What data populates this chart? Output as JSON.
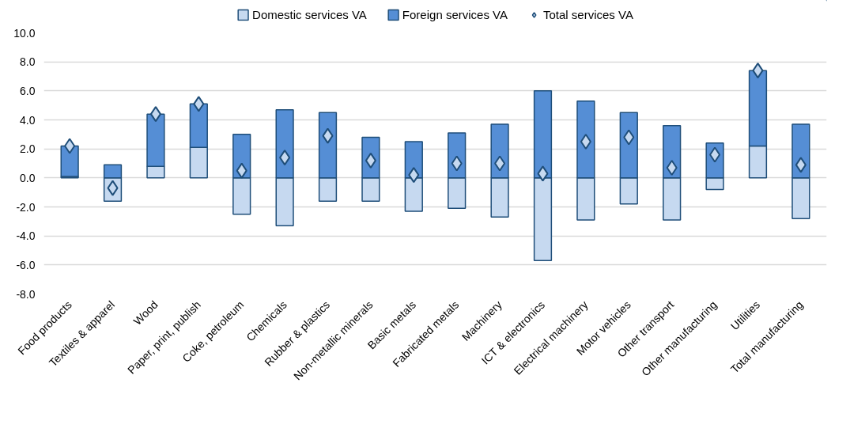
{
  "chart_data": {
    "type": "bar",
    "stacked": true,
    "categories": [
      "Food products",
      "Textiles & apparel",
      "Wood",
      "Paper, print, publish",
      "Coke, petroleum",
      "Chemicals",
      "Rubber & plastics",
      "Non-metallic minerals",
      "Basic metals",
      "Fabricated metals",
      "Machinery",
      "ICT & electronics",
      "Electrical machinery",
      "Motor vehicles",
      "Other transport",
      "Other manufacturing",
      "Utilities",
      "Total manufacturing"
    ],
    "series": [
      {
        "name": "Domestic services VA",
        "color": "#c6d9f0",
        "values": [
          0.1,
          -1.6,
          0.8,
          2.1,
          -2.5,
          -3.3,
          -1.6,
          -1.6,
          -2.3,
          -2.1,
          -2.7,
          -5.7,
          -2.9,
          -1.8,
          -2.9,
          -0.8,
          2.2,
          -2.8
        ]
      },
      {
        "name": "Foreign services VA",
        "color": "#558ed5",
        "values": [
          2.1,
          0.9,
          3.6,
          3.0,
          3.0,
          4.7,
          4.5,
          2.8,
          2.5,
          3.1,
          3.7,
          6.0,
          5.3,
          4.5,
          3.6,
          2.4,
          5.2,
          3.7
        ]
      },
      {
        "name": "Total services VA",
        "type": "scatter",
        "marker": "diamond",
        "color": "#c6d9f0",
        "values": [
          2.2,
          -0.7,
          4.4,
          5.1,
          0.5,
          1.4,
          2.9,
          1.2,
          0.2,
          1.0,
          1.0,
          0.3,
          2.5,
          2.8,
          0.7,
          1.6,
          7.4,
          0.9
        ]
      }
    ],
    "ylim": [
      -8,
      10
    ],
    "yticks": [
      {
        "value": -8,
        "label": "-8.0"
      },
      {
        "value": -6,
        "label": "-6.0"
      },
      {
        "value": -4,
        "label": "-4.0"
      },
      {
        "value": -2,
        "label": "-2.0"
      },
      {
        "value": 0,
        "label": "0.0"
      },
      {
        "value": 2,
        "label": "2.0"
      },
      {
        "value": 4,
        "label": "4.0"
      },
      {
        "value": 6,
        "label": "6.0"
      },
      {
        "value": 8,
        "label": "8.0"
      },
      {
        "value": 10,
        "label": "10.0"
      }
    ],
    "grid": "y",
    "legend": "top"
  }
}
